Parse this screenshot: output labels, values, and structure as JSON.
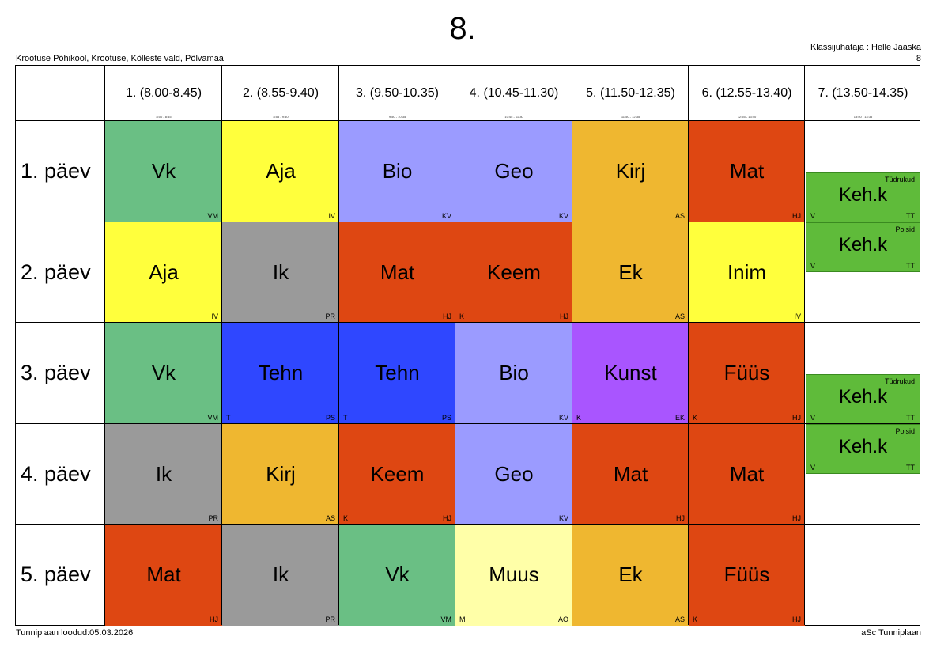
{
  "title": "8.",
  "school": "Krootuse Põhikool, Krootuse, Kõlleste vald, Põlvamaa",
  "class_teacher": "Klassijuhataja : Helle Jaaska",
  "class_number": "8",
  "footer_left": "Tunniplaan loodud:05.03.2026",
  "footer_right": "aSc Tunniplaan",
  "periods": [
    {
      "label": "1. (8.00-8.45)",
      "small": "8:00 - 8:45"
    },
    {
      "label": "2. (8.55-9.40)",
      "small": "8:55 - 9:40"
    },
    {
      "label": "3. (9.50-10.35)",
      "small": "9:50 - 10:35"
    },
    {
      "label": "4. (10.45-11.30)",
      "small": "10:45 - 11:30"
    },
    {
      "label": "5. (11.50-12.35)",
      "small": "11:50 - 12:35"
    },
    {
      "label": "6. (12.55-13.40)",
      "small": "12:55 - 13:40"
    },
    {
      "label": "7. (13.50-14.35)",
      "small": "13:50 - 14:35"
    }
  ],
  "days": [
    "1. päev",
    "2. päev",
    "3. päev",
    "4. päev",
    "5. päev"
  ],
  "colors": {
    "Vk": "#6abf84",
    "Aja": "#ffff3c",
    "Bio": "#9b9bff",
    "Geo": "#9b9bff",
    "Kirj": "#efb730",
    "Mat": "#de4712",
    "Ik": "#9a9a9a",
    "Keem": "#de4712",
    "Ek": "#efb730",
    "Inim": "#ffff3c",
    "Tehn": "#2f47ff",
    "Kunst": "#a955ff",
    "Füüs": "#de4712",
    "Muus": "#ffffa8",
    "Keh.k": "#5fbb3a"
  },
  "lessons": [
    [
      {
        "subject": "Vk",
        "teacher": "VM",
        "room": ""
      },
      {
        "subject": "Aja",
        "teacher": "IV",
        "room": ""
      },
      {
        "subject": "Bio",
        "teacher": "KV",
        "room": ""
      },
      {
        "subject": "Geo",
        "teacher": "KV",
        "room": ""
      },
      {
        "subject": "Kirj",
        "teacher": "AS",
        "room": ""
      },
      {
        "subject": "Mat",
        "teacher": "HJ",
        "room": ""
      }
    ],
    [
      {
        "subject": "Aja",
        "teacher": "IV",
        "room": ""
      },
      {
        "subject": "Ik",
        "teacher": "PR",
        "room": ""
      },
      {
        "subject": "Mat",
        "teacher": "HJ",
        "room": ""
      },
      {
        "subject": "Keem",
        "teacher": "HJ",
        "room": "K"
      },
      {
        "subject": "Ek",
        "teacher": "AS",
        "room": ""
      },
      {
        "subject": "Inim",
        "teacher": "IV",
        "room": ""
      }
    ],
    [
      {
        "subject": "Vk",
        "teacher": "VM",
        "room": ""
      },
      {
        "subject": "Tehn",
        "teacher": "PS",
        "room": "T"
      },
      {
        "subject": "Tehn",
        "teacher": "PS",
        "room": "T"
      },
      {
        "subject": "Bio",
        "teacher": "KV",
        "room": ""
      },
      {
        "subject": "Kunst",
        "teacher": "EK",
        "room": "K"
      },
      {
        "subject": "Füüs",
        "teacher": "HJ",
        "room": "K"
      }
    ],
    [
      {
        "subject": "Ik",
        "teacher": "PR",
        "room": ""
      },
      {
        "subject": "Kirj",
        "teacher": "AS",
        "room": ""
      },
      {
        "subject": "Keem",
        "teacher": "HJ",
        "room": "K"
      },
      {
        "subject": "Geo",
        "teacher": "KV",
        "room": ""
      },
      {
        "subject": "Mat",
        "teacher": "HJ",
        "room": ""
      },
      {
        "subject": "Mat",
        "teacher": "HJ",
        "room": ""
      }
    ],
    [
      {
        "subject": "Mat",
        "teacher": "HJ",
        "room": ""
      },
      {
        "subject": "Ik",
        "teacher": "PR",
        "room": ""
      },
      {
        "subject": "Vk",
        "teacher": "VM",
        "room": ""
      },
      {
        "subject": "Muus",
        "teacher": "AO",
        "room": "M"
      },
      {
        "subject": "Ek",
        "teacher": "AS",
        "room": ""
      },
      {
        "subject": "Füüs",
        "teacher": "HJ",
        "room": "K"
      }
    ]
  ],
  "seventh_period": [
    {
      "day": 0,
      "half": "bottom",
      "group": "Tüdrukud",
      "subject": "Keh.k",
      "teacher": "TT",
      "room": "V"
    },
    {
      "day": 1,
      "half": "top",
      "group": "Poisid",
      "subject": "Keh.k",
      "teacher": "TT",
      "room": "V"
    },
    {
      "day": 2,
      "half": "bottom",
      "group": "Tüdrukud",
      "subject": "Keh.k",
      "teacher": "TT",
      "room": "V"
    },
    {
      "day": 3,
      "half": "top",
      "group": "Poisid",
      "subject": "Keh.k",
      "teacher": "TT",
      "room": "V"
    }
  ]
}
